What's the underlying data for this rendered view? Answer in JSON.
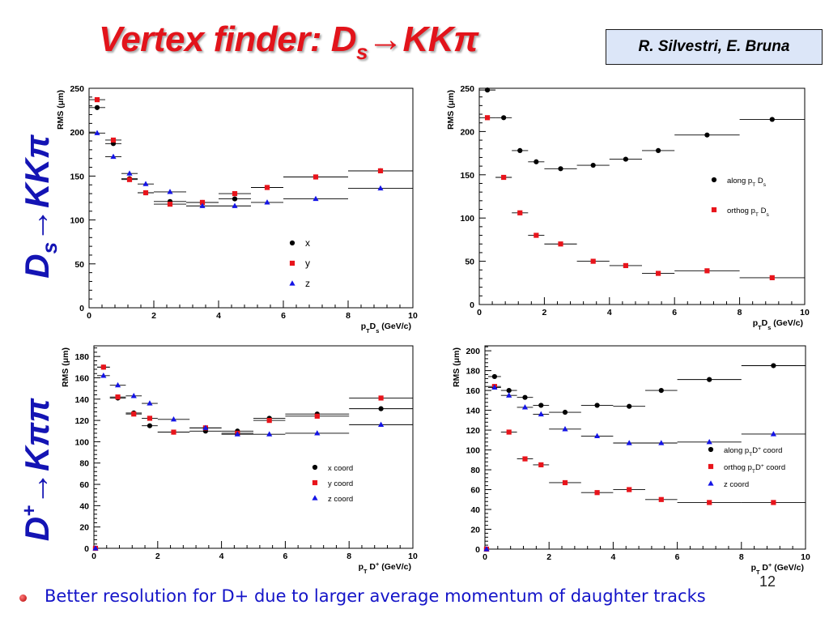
{
  "slide": {
    "title": "Vertex finder: D",
    "title_sub": "s",
    "title_tail": "→KKπ",
    "authors": "R. Silvestri, E. Bruna",
    "side_top": {
      "main": "D",
      "sub": "s",
      "tail": "→KKπ"
    },
    "side_bottom": {
      "main": "D",
      "sup": "+",
      "tail": "→Kππ"
    },
    "note": "Better resolution for D+ due to larger average momentum of daughter tracks",
    "page_number": "12",
    "colors": {
      "title": "#e2141b",
      "side_labels": "#1414b4",
      "note": "#1414c8",
      "author_box": "#dce6f8"
    }
  },
  "chart_data": [
    {
      "type": "scatter",
      "xlabel": "p_{T}D_{s} (GeV/c)",
      "ylabel": "RMS (#mum)",
      "xlim": [
        0,
        10
      ],
      "ylim": [
        0,
        250
      ],
      "xticks": [
        0,
        2,
        4,
        6,
        8,
        10
      ],
      "yticks": [
        0,
        50,
        100,
        150,
        200,
        250
      ],
      "legend": "bottom-right",
      "bins": [
        [
          0,
          0.5
        ],
        [
          0.5,
          1
        ],
        [
          1,
          1.5
        ],
        [
          1.5,
          2
        ],
        [
          2,
          3
        ],
        [
          3,
          4
        ],
        [
          4,
          5
        ],
        [
          5,
          6
        ],
        [
          6,
          8
        ],
        [
          8,
          10
        ]
      ],
      "series": [
        {
          "name": "x",
          "marker": "circle",
          "color": "#000000",
          "values": [
            228,
            187,
            147,
            131,
            121,
            120,
            124,
            137,
            149,
            156
          ]
        },
        {
          "name": "y",
          "marker": "square",
          "color": "#e8141b",
          "values": [
            237,
            191,
            146,
            131,
            118,
            120,
            130,
            137,
            149,
            156
          ]
        },
        {
          "name": "z",
          "marker": "triangle",
          "color": "#1414e6",
          "values": [
            199,
            172,
            153,
            141,
            132,
            116,
            116,
            120,
            124,
            136
          ]
        }
      ]
    },
    {
      "type": "scatter",
      "xlabel": "p_{T}D_{s} (GeV/c)",
      "ylabel": "RMS (#mum)",
      "xlim": [
        0,
        10
      ],
      "ylim": [
        0,
        250
      ],
      "xticks": [
        0,
        2,
        4,
        6,
        8,
        10
      ],
      "yticks": [
        0,
        50,
        100,
        150,
        200,
        250
      ],
      "legend": "center-right",
      "bins": [
        [
          0,
          0.5
        ],
        [
          0.5,
          1
        ],
        [
          1,
          1.5
        ],
        [
          1.5,
          2
        ],
        [
          2,
          3
        ],
        [
          3,
          4
        ],
        [
          4,
          5
        ],
        [
          5,
          6
        ],
        [
          6,
          8
        ],
        [
          8,
          10
        ]
      ],
      "series": [
        {
          "name": "along p_{T} D_{s}",
          "marker": "circle",
          "color": "#000000",
          "values": [
            248,
            216,
            178,
            165,
            157,
            161,
            168,
            178,
            196,
            214
          ]
        },
        {
          "name": "orthog p_{T} D_{s}",
          "marker": "square",
          "color": "#e8141b",
          "values": [
            216,
            147,
            106,
            80,
            70,
            50,
            45,
            36,
            39,
            31
          ]
        }
      ]
    },
    {
      "type": "scatter",
      "xlabel": "p_{T} D^{+} (GeV/c)",
      "ylabel": "RMS (#mum)",
      "xlim": [
        0,
        10
      ],
      "ylim": [
        0,
        190
      ],
      "xticks": [
        0,
        2,
        4,
        6,
        8,
        10
      ],
      "yticks": [
        0,
        20,
        40,
        60,
        80,
        100,
        120,
        140,
        160,
        180
      ],
      "legend": "bottom-right",
      "bins": [
        [
          0,
          0.1
        ],
        [
          0.1,
          0.5
        ],
        [
          0.5,
          1
        ],
        [
          1,
          1.5
        ],
        [
          1.5,
          2
        ],
        [
          2,
          3
        ],
        [
          3,
          4
        ],
        [
          4,
          5
        ],
        [
          5,
          6
        ],
        [
          6,
          8
        ],
        [
          8,
          10
        ]
      ],
      "series": [
        {
          "name": "x coord",
          "marker": "circle",
          "color": "#000000",
          "values": [
            0,
            170,
            141,
            127,
            115,
            109,
            110,
            110,
            122,
            126,
            131
          ]
        },
        {
          "name": "y coord",
          "marker": "square",
          "color": "#e8141b",
          "values": [
            0,
            170,
            142,
            126,
            122,
            109,
            113,
            108,
            120,
            124,
            141
          ]
        },
        {
          "name": "z coord",
          "marker": "triangle",
          "color": "#1414e6",
          "values": [
            0,
            162,
            153,
            143,
            136,
            121,
            113,
            107,
            107,
            108,
            116
          ]
        }
      ]
    },
    {
      "type": "scatter",
      "xlabel": "p_{T} D^{+} (GeV/c)",
      "ylabel": "RMS (#mum)",
      "xlim": [
        0,
        10
      ],
      "ylim": [
        0,
        205
      ],
      "xticks": [
        0,
        2,
        4,
        6,
        8,
        10
      ],
      "yticks": [
        0,
        20,
        40,
        60,
        80,
        100,
        120,
        140,
        160,
        180,
        200
      ],
      "legend": "center-right",
      "bins": [
        [
          0,
          0.1
        ],
        [
          0.1,
          0.5
        ],
        [
          0.5,
          1
        ],
        [
          1,
          1.5
        ],
        [
          1.5,
          2
        ],
        [
          2,
          3
        ],
        [
          3,
          4
        ],
        [
          4,
          5
        ],
        [
          5,
          6
        ],
        [
          6,
          8
        ],
        [
          8,
          10
        ]
      ],
      "series": [
        {
          "name": "along p_{T}D^{+} coord",
          "marker": "circle",
          "color": "#000000",
          "values": [
            0,
            174,
            160,
            153,
            145,
            138,
            145,
            144,
            160,
            171,
            185
          ]
        },
        {
          "name": "orthog p_{T}D^{+} coord",
          "marker": "square",
          "color": "#e8141b",
          "values": [
            0,
            164,
            118,
            91,
            85,
            67,
            57,
            60,
            50,
            47,
            47
          ]
        },
        {
          "name": "z coord",
          "marker": "triangle",
          "color": "#1414e6",
          "values": [
            0,
            163,
            155,
            143,
            136,
            121,
            114,
            107,
            107,
            108,
            116
          ]
        }
      ]
    }
  ]
}
